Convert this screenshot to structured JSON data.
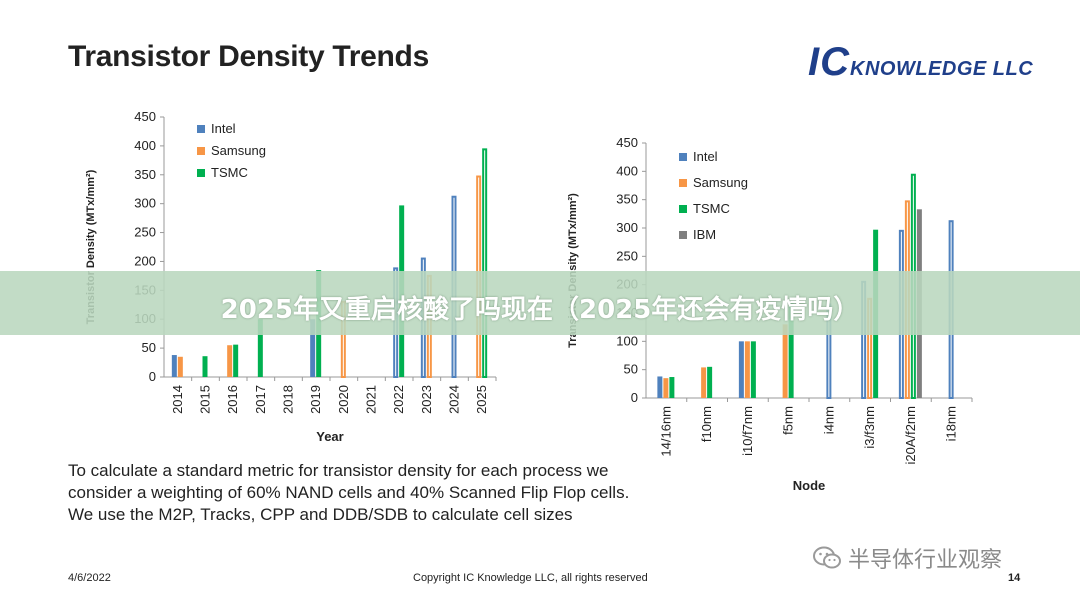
{
  "title": "Transistor Density Trends",
  "logo": {
    "ic": "IC",
    "rest": "KNOWLEDGE LLC"
  },
  "description": "To calculate a standard metric for transistor density for each process we consider a weighting of 60% NAND cells and 40% Scanned Flip Flop cells. We use the M2P, Tracks, CPP and DDB/SDB to calculate cell sizes",
  "footer": {
    "date": "4/6/2022",
    "copyright": "Copyright IC Knowledge LLC, all rights reserved",
    "page": "14"
  },
  "overlay": {
    "banner_text": "2025年又重启核酸了吗现在（2025年还会有疫情吗）",
    "watermark": "半导体行业观察"
  },
  "colors": {
    "intel": "#4f81bd",
    "samsung": "#f79646",
    "tsmc": "#00b050",
    "ibm": "#7f7f7f"
  },
  "chart_data": [
    {
      "type": "bar",
      "xlabel": "Year",
      "ylabel": "Transistor Density (MTx/mm²)",
      "ylim": [
        0,
        450
      ],
      "yticks": [
        0,
        50,
        100,
        150,
        200,
        250,
        300,
        350,
        400,
        450
      ],
      "categories": [
        "2014",
        "2015",
        "2016",
        "2017",
        "2018",
        "2019",
        "2020",
        "2021",
        "2022",
        "2023",
        "2024",
        "2025"
      ],
      "series": [
        {
          "name": "Intel",
          "values": [
            38,
            null,
            null,
            null,
            null,
            100,
            null,
            null,
            188,
            205,
            312,
            null
          ],
          "outline": [
            false,
            false,
            false,
            false,
            false,
            false,
            false,
            false,
            true,
            true,
            true,
            false
          ]
        },
        {
          "name": "Samsung",
          "values": [
            35,
            null,
            55,
            null,
            null,
            null,
            130,
            null,
            null,
            175,
            null,
            347
          ],
          "outline": [
            false,
            false,
            false,
            false,
            false,
            false,
            true,
            false,
            false,
            true,
            false,
            true
          ]
        },
        {
          "name": "TSMC",
          "values": [
            null,
            36,
            56,
            100,
            null,
            185,
            null,
            null,
            297,
            null,
            null,
            394
          ],
          "outline": [
            false,
            false,
            false,
            false,
            false,
            false,
            false,
            false,
            false,
            false,
            false,
            true
          ]
        }
      ],
      "grid": false,
      "legend": "top-left"
    },
    {
      "type": "bar",
      "xlabel": "Node",
      "ylabel": "Transistor Density (MTx/mm²)",
      "ylim": [
        0,
        450
      ],
      "yticks": [
        0,
        50,
        100,
        150,
        200,
        250,
        300,
        350,
        400,
        450
      ],
      "categories": [
        "14/16nm",
        "f10nm",
        "i10/f7nm",
        "f5nm",
        "i4nm",
        "i3/f3nm",
        "i20A/f2nm",
        "i18nm"
      ],
      "series": [
        {
          "name": "Intel",
          "values": [
            38,
            null,
            100,
            null,
            165,
            205,
            295,
            312
          ],
          "outline": [
            false,
            false,
            false,
            false,
            true,
            true,
            true,
            true
          ]
        },
        {
          "name": "Samsung",
          "values": [
            35,
            54,
            100,
            130,
            null,
            175,
            347,
            null
          ],
          "outline": [
            false,
            false,
            false,
            false,
            false,
            true,
            true,
            false
          ]
        },
        {
          "name": "TSMC",
          "values": [
            37,
            55,
            100,
            172,
            null,
            297,
            394,
            null
          ],
          "outline": [
            false,
            false,
            false,
            false,
            false,
            false,
            true,
            false
          ]
        },
        {
          "name": "IBM",
          "values": [
            null,
            null,
            null,
            null,
            null,
            null,
            333,
            null
          ],
          "outline": [
            false,
            false,
            false,
            false,
            false,
            false,
            false,
            false
          ]
        }
      ],
      "grid": false,
      "legend": "top-left"
    }
  ]
}
